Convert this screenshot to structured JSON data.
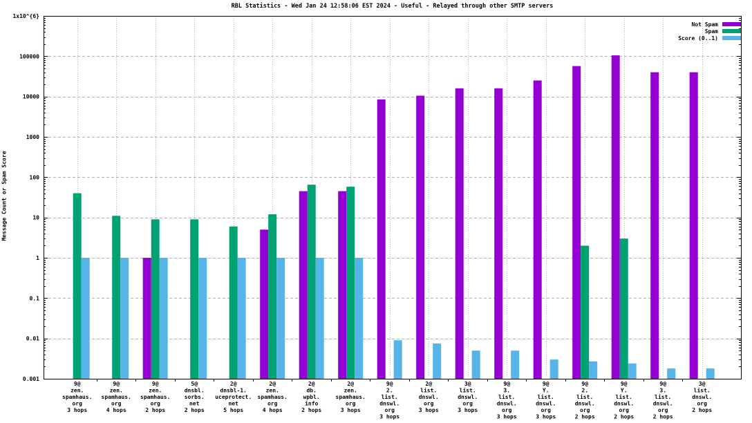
{
  "chart_data": {
    "type": "bar",
    "title": "RBL Statistics - Wed Jan 24 12:58:06 EST 2024 - Useful - Relayed through other SMTP servers",
    "ylabel": "Message Count or Spam Score",
    "xlabel": "",
    "yscale": "log",
    "ylim": [
      0.001,
      1000000
    ],
    "ytick_labels": [
      "1x10^{6}",
      "100000",
      "10000",
      "1000",
      "100",
      "10",
      "1",
      "0.1",
      "0.01",
      "0.001"
    ],
    "grid": true,
    "legend_position": "top-right",
    "background_color": "#ffffff",
    "grid_color": "#b3b3b3",
    "axis_color": "#000000",
    "categories": [
      [
        "9@",
        "zen.",
        "spamhaus.",
        "org",
        "3 hops"
      ],
      [
        "9@",
        "zen.",
        "spamhaus.",
        "org",
        "4 hops"
      ],
      [
        "9@",
        "zen.",
        "spamhaus.",
        "org",
        "2 hops"
      ],
      [
        "5@",
        "dnsbl.",
        "sorbs.",
        "net",
        "2 hops"
      ],
      [
        "2@",
        "dnsbl-1.",
        "uceprotect.",
        "net",
        "5 hops"
      ],
      [
        "2@",
        "zen.",
        "spamhaus.",
        "org",
        "4 hops"
      ],
      [
        "2@",
        "db.",
        "wpbl.",
        "info",
        "2 hops"
      ],
      [
        "2@",
        "zen.",
        "spamhaus.",
        "org",
        "3 hops"
      ],
      [
        "9@",
        "2.",
        "list.",
        "dnswl.",
        "org",
        "3 hops"
      ],
      [
        "2@",
        "list.",
        "dnswl.",
        "org",
        "3 hops"
      ],
      [
        "3@",
        "list.",
        "dnswl.",
        "org",
        "3 hops"
      ],
      [
        "9@",
        "3.",
        "list.",
        "dnswl.",
        "org",
        "3 hops"
      ],
      [
        "9@",
        "Y.",
        "list.",
        "dnswl.",
        "org",
        "3 hops"
      ],
      [
        "9@",
        "2.",
        "list.",
        "dnswl.",
        "org",
        "2 hops"
      ],
      [
        "9@",
        "Y.",
        "list.",
        "dnswl.",
        "org",
        "2 hops"
      ],
      [
        "9@",
        "3.",
        "list.",
        "dnswl.",
        "org",
        "2 hops"
      ],
      [
        "3@",
        "list.",
        "dnswl.",
        "org",
        "2 hops"
      ]
    ],
    "series": [
      {
        "name": "Not Spam",
        "color": "#9400D3",
        "values": [
          null,
          null,
          1,
          null,
          null,
          5,
          45,
          45,
          8500,
          10500,
          16000,
          16000,
          25000,
          57000,
          105000,
          40000,
          40000
        ]
      },
      {
        "name": "Spam",
        "color": "#00A273",
        "values": [
          40,
          11,
          9,
          9,
          6,
          12,
          65,
          58,
          null,
          null,
          null,
          null,
          null,
          2,
          3,
          null,
          null
        ]
      },
      {
        "name": "Score (0..1)",
        "color": "#56B4E9",
        "values": [
          1,
          1,
          1,
          1,
          1,
          1,
          1,
          1,
          0.009,
          0.0075,
          0.005,
          0.005,
          0.003,
          0.0027,
          0.0024,
          0.0018,
          0.0018
        ]
      }
    ]
  }
}
